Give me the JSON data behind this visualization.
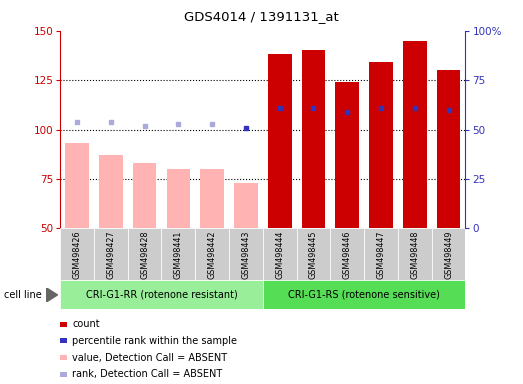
{
  "title": "GDS4014 / 1391131_at",
  "samples": [
    "GSM498426",
    "GSM498427",
    "GSM498428",
    "GSM498441",
    "GSM498442",
    "GSM498443",
    "GSM498444",
    "GSM498445",
    "GSM498446",
    "GSM498447",
    "GSM498448",
    "GSM498449"
  ],
  "group1_label": "CRI-G1-RR (rotenone resistant)",
  "group2_label": "CRI-G1-RS (rotenone sensitive)",
  "group1_count": 6,
  "group2_count": 6,
  "bar_values": [
    93,
    87,
    83,
    80,
    80,
    73,
    138,
    140,
    124,
    134,
    145,
    130
  ],
  "bar_absent": [
    true,
    true,
    true,
    true,
    true,
    true,
    false,
    false,
    false,
    false,
    false,
    false
  ],
  "rank_values": [
    104,
    104,
    102,
    103,
    103,
    101,
    111,
    111,
    109,
    111,
    111,
    110
  ],
  "rank_absent": [
    true,
    true,
    true,
    true,
    true,
    false,
    false,
    false,
    false,
    false,
    false,
    false
  ],
  "ylim_left": [
    50,
    150
  ],
  "ylim_right": [
    0,
    100
  ],
  "yticks_left": [
    50,
    75,
    100,
    125,
    150
  ],
  "yticks_right": [
    0,
    25,
    50,
    75,
    100
  ],
  "color_absent_bar": "#FFB3B3",
  "color_present_bar": "#CC0000",
  "color_rank_absent": "#AAAADD",
  "color_rank_present": "#3333BB",
  "color_group1_bg": "#99EE99",
  "color_group2_bg": "#55DD55",
  "left_axis_color": "#CC0000",
  "right_axis_color": "#3333BB",
  "cell_line_label": "cell line",
  "legend_items": [
    "count",
    "percentile rank within the sample",
    "value, Detection Call = ABSENT",
    "rank, Detection Call = ABSENT"
  ],
  "legend_colors": [
    "#CC0000",
    "#3333BB",
    "#FFB3B3",
    "#AAAADD"
  ],
  "xticklabel_bg": "#CCCCCC",
  "grid_yticks": [
    75,
    100,
    125
  ]
}
